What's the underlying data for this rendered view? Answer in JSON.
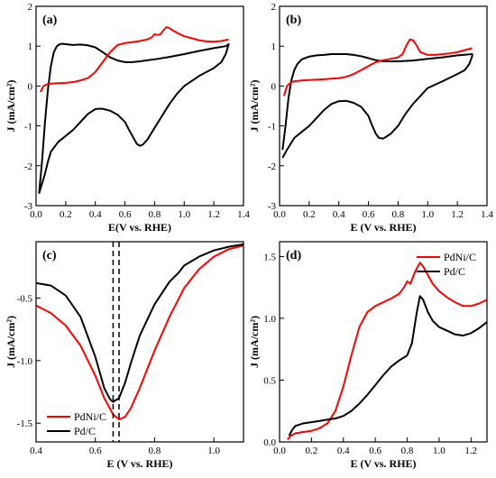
{
  "chart_data": [
    {
      "id": "a",
      "type": "line",
      "panel_label": "(a)",
      "xlabel": "E(V vs. RHE)",
      "ylabel": "J (mA/cm²)",
      "xlim": [
        0.0,
        1.4
      ],
      "ylim": [
        -3,
        2
      ],
      "xticks": [
        0.0,
        0.2,
        0.4,
        0.6,
        0.8,
        1.0,
        1.2,
        1.4
      ],
      "yticks": [
        -3,
        -2,
        -1,
        0,
        1,
        2
      ],
      "xtick_labels": [
        "0.0",
        "0.2",
        "0.4",
        "0.6",
        "0.8",
        "1.0",
        "1.2",
        "1.4"
      ],
      "ytick_labels": [
        "-3",
        "-2",
        "-1",
        "0",
        "1",
        "2"
      ],
      "series": [
        {
          "color": "#000000",
          "x": [
            0.02,
            0.04,
            0.06,
            0.08,
            0.1,
            0.12,
            0.14,
            0.16,
            0.18,
            0.2,
            0.25,
            0.3,
            0.35,
            0.4,
            0.45,
            0.5,
            0.55,
            0.6,
            0.65,
            0.7,
            0.8,
            0.9,
            1.0,
            1.1,
            1.2,
            1.28,
            1.3,
            1.28,
            1.25,
            1.2,
            1.1,
            1.0,
            0.95,
            0.9,
            0.85,
            0.8,
            0.75,
            0.72,
            0.7,
            0.68,
            0.65,
            0.62,
            0.6,
            0.55,
            0.5,
            0.45,
            0.42,
            0.4,
            0.35,
            0.3,
            0.25,
            0.2,
            0.15,
            0.1,
            0.08,
            0.06,
            0.04,
            0.02
          ],
          "y": [
            -2.7,
            -1.9,
            -0.9,
            -0.1,
            0.5,
            0.85,
            1.0,
            1.05,
            1.06,
            1.05,
            1.03,
            1.04,
            1.02,
            0.97,
            0.85,
            0.72,
            0.64,
            0.6,
            0.6,
            0.62,
            0.67,
            0.73,
            0.8,
            0.88,
            0.95,
            1.0,
            1.05,
            0.8,
            0.6,
            0.45,
            0.25,
            0.0,
            -0.2,
            -0.45,
            -0.75,
            -1.05,
            -1.35,
            -1.47,
            -1.5,
            -1.45,
            -1.25,
            -1.05,
            -0.9,
            -0.72,
            -0.62,
            -0.57,
            -0.57,
            -0.58,
            -0.7,
            -0.9,
            -1.1,
            -1.25,
            -1.4,
            -1.65,
            -1.9,
            -2.2,
            -2.45,
            -2.7
          ]
        },
        {
          "color": "#ff0000",
          "x": [
            0.03,
            0.05,
            0.08,
            0.1,
            0.15,
            0.2,
            0.25,
            0.3,
            0.35,
            0.4,
            0.45,
            0.5,
            0.55,
            0.6,
            0.65,
            0.7,
            0.75,
            0.78,
            0.8,
            0.82,
            0.84,
            0.86,
            0.88,
            0.9,
            0.93,
            0.96,
            1.0,
            1.05,
            1.1,
            1.15,
            1.2,
            1.25,
            1.3
          ],
          "y": [
            -0.15,
            0.0,
            0.05,
            0.06,
            0.07,
            0.08,
            0.1,
            0.14,
            0.2,
            0.35,
            0.6,
            0.85,
            1.03,
            1.08,
            1.1,
            1.13,
            1.17,
            1.22,
            1.3,
            1.28,
            1.3,
            1.4,
            1.48,
            1.45,
            1.38,
            1.32,
            1.25,
            1.2,
            1.15,
            1.12,
            1.11,
            1.13,
            1.17
          ]
        }
      ]
    },
    {
      "id": "b",
      "type": "line",
      "panel_label": "(b)",
      "xlabel": "E (V vs. RHE)",
      "ylabel": "J (mA/cm²)",
      "xlim": [
        0.0,
        1.4
      ],
      "ylim": [
        -3,
        2
      ],
      "xticks": [
        0.0,
        0.2,
        0.4,
        0.6,
        0.8,
        1.0,
        1.2,
        1.4
      ],
      "yticks": [
        -3,
        -2,
        -1,
        0,
        1,
        2
      ],
      "xtick_labels": [
        "0.0",
        "0.2",
        "0.4",
        "0.6",
        "0.8",
        "1.0",
        "1.2",
        "1.4"
      ],
      "ytick_labels": [
        "-3",
        "-2",
        "-1",
        "0",
        "1",
        "2"
      ],
      "series": [
        {
          "color": "#000000",
          "x": [
            0.02,
            0.04,
            0.06,
            0.08,
            0.1,
            0.12,
            0.15,
            0.2,
            0.25,
            0.3,
            0.35,
            0.4,
            0.45,
            0.5,
            0.55,
            0.6,
            0.65,
            0.7,
            0.8,
            0.9,
            1.0,
            1.1,
            1.2,
            1.3,
            1.3,
            1.28,
            1.25,
            1.2,
            1.1,
            1.0,
            0.95,
            0.9,
            0.85,
            0.8,
            0.75,
            0.7,
            0.67,
            0.65,
            0.62,
            0.6,
            0.55,
            0.5,
            0.45,
            0.4,
            0.35,
            0.3,
            0.25,
            0.2,
            0.15,
            0.1,
            0.05,
            0.02
          ],
          "y": [
            -1.6,
            -1.0,
            -0.3,
            0.15,
            0.4,
            0.55,
            0.67,
            0.74,
            0.77,
            0.78,
            0.8,
            0.8,
            0.8,
            0.78,
            0.75,
            0.7,
            0.65,
            0.62,
            0.62,
            0.64,
            0.68,
            0.72,
            0.77,
            0.8,
            0.75,
            0.55,
            0.4,
            0.3,
            0.12,
            -0.05,
            -0.25,
            -0.45,
            -0.7,
            -1.0,
            -1.2,
            -1.32,
            -1.3,
            -1.2,
            -0.95,
            -0.75,
            -0.52,
            -0.42,
            -0.37,
            -0.38,
            -0.45,
            -0.6,
            -0.8,
            -1.0,
            -1.15,
            -1.3,
            -1.6,
            -1.8
          ]
        },
        {
          "color": "#ff0000",
          "x": [
            0.03,
            0.05,
            0.08,
            0.1,
            0.15,
            0.2,
            0.3,
            0.4,
            0.45,
            0.5,
            0.55,
            0.6,
            0.65,
            0.7,
            0.75,
            0.8,
            0.83,
            0.86,
            0.88,
            0.9,
            0.92,
            0.95,
            1.0,
            1.05,
            1.1,
            1.15,
            1.2,
            1.25,
            1.3
          ],
          "y": [
            -0.25,
            0.0,
            0.1,
            0.12,
            0.14,
            0.15,
            0.17,
            0.2,
            0.23,
            0.3,
            0.4,
            0.5,
            0.6,
            0.65,
            0.68,
            0.72,
            0.8,
            1.05,
            1.17,
            1.15,
            1.05,
            0.85,
            0.78,
            0.78,
            0.8,
            0.82,
            0.85,
            0.9,
            0.95
          ]
        }
      ]
    },
    {
      "id": "c",
      "type": "line",
      "panel_label": "(c)",
      "xlabel": "E (V vs. RHE)",
      "ylabel": "J (mA/cm²)",
      "xlim": [
        0.4,
        1.1
      ],
      "ylim": [
        -1.65,
        -0.05
      ],
      "xticks": [
        0.4,
        0.6,
        0.8,
        1.0
      ],
      "yticks": [
        -1.5,
        -1.0,
        -0.5
      ],
      "xtick_labels": [
        "0.4",
        "0.6",
        "0.8",
        "1.0"
      ],
      "ytick_labels": [
        "-1.5",
        "-1.0",
        "-0.5"
      ],
      "vlines": [
        0.66,
        0.68
      ],
      "legend_position": "bottom-left",
      "series": [
        {
          "name": "PdNi/C",
          "color": "#ff0000",
          "x": [
            0.4,
            0.45,
            0.5,
            0.55,
            0.6,
            0.63,
            0.66,
            0.68,
            0.7,
            0.72,
            0.75,
            0.8,
            0.85,
            0.9,
            0.95,
            1.0,
            1.05,
            1.1
          ],
          "y": [
            -0.56,
            -0.62,
            -0.72,
            -0.88,
            -1.12,
            -1.3,
            -1.43,
            -1.47,
            -1.45,
            -1.38,
            -1.22,
            -0.92,
            -0.65,
            -0.42,
            -0.27,
            -0.17,
            -0.11,
            -0.08
          ]
        },
        {
          "name": "Pd/C",
          "color": "#000000",
          "x": [
            0.4,
            0.45,
            0.5,
            0.55,
            0.6,
            0.63,
            0.65,
            0.66,
            0.68,
            0.7,
            0.72,
            0.75,
            0.8,
            0.85,
            0.88,
            0.9,
            0.95,
            1.0,
            1.05,
            1.1
          ],
          "y": [
            -0.38,
            -0.4,
            -0.48,
            -0.65,
            -0.97,
            -1.22,
            -1.31,
            -1.33,
            -1.3,
            -1.18,
            -1.02,
            -0.8,
            -0.55,
            -0.37,
            -0.3,
            -0.24,
            -0.17,
            -0.12,
            -0.09,
            -0.07
          ]
        }
      ]
    },
    {
      "id": "d",
      "type": "line",
      "panel_label": "(d)",
      "xlabel": "E (V vs. RHE)",
      "ylabel": "J (mA/cm²)",
      "xlim": [
        0.0,
        1.3
      ],
      "ylim": [
        0.0,
        1.62
      ],
      "xticks": [
        0.0,
        0.2,
        0.4,
        0.6,
        0.8,
        1.0,
        1.2
      ],
      "yticks": [
        0.0,
        0.5,
        1.0,
        1.5
      ],
      "xtick_labels": [
        "0.0",
        "0.2",
        "0.4",
        "0.6",
        "0.8",
        "1.0",
        "1.2"
      ],
      "ytick_labels": [
        "0.0",
        "0.5",
        "1.0",
        "1.5"
      ],
      "legend_position": "top-right",
      "series": [
        {
          "name": "PdNi/C",
          "color": "#ff0000",
          "x": [
            0.05,
            0.07,
            0.1,
            0.15,
            0.2,
            0.25,
            0.3,
            0.35,
            0.4,
            0.45,
            0.5,
            0.55,
            0.6,
            0.65,
            0.7,
            0.75,
            0.78,
            0.8,
            0.82,
            0.85,
            0.88,
            0.9,
            0.93,
            0.96,
            1.0,
            1.05,
            1.1,
            1.15,
            1.2,
            1.25,
            1.3
          ],
          "y": [
            0.02,
            0.05,
            0.07,
            0.08,
            0.09,
            0.11,
            0.15,
            0.25,
            0.45,
            0.7,
            0.93,
            1.05,
            1.1,
            1.13,
            1.16,
            1.2,
            1.25,
            1.3,
            1.28,
            1.38,
            1.45,
            1.42,
            1.35,
            1.28,
            1.22,
            1.17,
            1.13,
            1.1,
            1.1,
            1.12,
            1.15
          ]
        },
        {
          "name": "Pd/C",
          "color": "#000000",
          "x": [
            0.06,
            0.08,
            0.1,
            0.15,
            0.2,
            0.25,
            0.3,
            0.35,
            0.4,
            0.45,
            0.5,
            0.55,
            0.6,
            0.65,
            0.7,
            0.75,
            0.8,
            0.83,
            0.86,
            0.88,
            0.9,
            0.93,
            0.96,
            1.0,
            1.05,
            1.1,
            1.15,
            1.2,
            1.25,
            1.3
          ],
          "y": [
            0.05,
            0.1,
            0.13,
            0.15,
            0.16,
            0.17,
            0.18,
            0.19,
            0.21,
            0.25,
            0.31,
            0.38,
            0.46,
            0.54,
            0.61,
            0.66,
            0.7,
            0.8,
            1.05,
            1.18,
            1.15,
            1.05,
            0.98,
            0.93,
            0.9,
            0.87,
            0.86,
            0.88,
            0.92,
            0.97
          ]
        }
      ]
    }
  ]
}
